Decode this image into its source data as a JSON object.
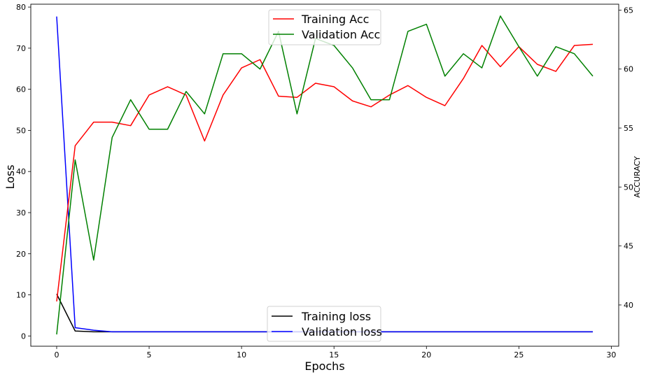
{
  "chart_data": {
    "type": "line",
    "xlabel": "Epochs",
    "ylabel_left": "Loss",
    "ylabel_right": "ACCURACY",
    "x": [
      0,
      1,
      2,
      3,
      4,
      5,
      6,
      7,
      8,
      9,
      10,
      11,
      12,
      13,
      14,
      15,
      16,
      17,
      18,
      19,
      20,
      21,
      22,
      23,
      24,
      25,
      26,
      27,
      28,
      29
    ],
    "xlim": [
      -1.4,
      30.4
    ],
    "ylim_left": [
      -2.5,
      80.7
    ],
    "ylim_right": [
      36.5,
      65.5
    ],
    "x_ticks": [
      0,
      5,
      10,
      15,
      20,
      25,
      30
    ],
    "y_ticks_left": [
      0,
      10,
      20,
      30,
      40,
      50,
      60,
      70,
      80
    ],
    "y_ticks_right": [
      40,
      45,
      50,
      55,
      60,
      65
    ],
    "legend_top": {
      "placement": "upper center",
      "entries": [
        "Training Acc",
        "Validation Acc"
      ]
    },
    "legend_bottom": {
      "placement": "lower center",
      "entries": [
        "Training loss",
        "Validation loss"
      ]
    },
    "series": [
      {
        "name": "Training Acc",
        "axis": "right",
        "color": "#ff0000",
        "values": [
          40.3,
          53.5,
          55.5,
          55.5,
          55.2,
          57.8,
          58.5,
          57.8,
          53.9,
          57.8,
          60.1,
          60.8,
          57.7,
          57.6,
          58.8,
          58.5,
          57.3,
          56.8,
          57.8,
          58.6,
          57.6,
          56.9,
          59.2,
          62.0,
          60.2,
          61.9,
          60.4,
          59.8,
          62.0,
          62.1
        ]
      },
      {
        "name": "Validation Acc",
        "axis": "right",
        "color": "#008000",
        "values": [
          37.5,
          52.3,
          43.8,
          54.2,
          57.4,
          54.9,
          54.9,
          58.1,
          56.2,
          61.3,
          61.3,
          60.0,
          63.2,
          56.2,
          62.6,
          62.0,
          60.1,
          57.4,
          57.4,
          63.2,
          63.8,
          59.4,
          61.3,
          60.1,
          64.5,
          61.9,
          59.4,
          61.9,
          61.3,
          59.4
        ]
      },
      {
        "name": "Training loss",
        "axis": "left",
        "color": "#000000",
        "values": [
          10.2,
          1.2,
          1.0,
          1.0,
          1.0,
          1.0,
          1.0,
          1.0,
          1.0,
          1.0,
          1.0,
          1.0,
          1.0,
          1.0,
          1.0,
          1.0,
          1.0,
          1.0,
          1.0,
          1.0,
          1.0,
          1.0,
          1.0,
          1.0,
          1.0,
          1.0,
          1.0,
          1.0,
          1.0,
          1.0
        ]
      },
      {
        "name": "Validation loss",
        "axis": "left",
        "color": "#0000ff",
        "values": [
          77.7,
          2.0,
          1.4,
          1.0,
          1.0,
          1.0,
          1.0,
          1.0,
          1.0,
          1.0,
          1.0,
          1.0,
          1.0,
          1.0,
          1.0,
          1.0,
          1.0,
          1.0,
          1.0,
          1.0,
          1.0,
          1.0,
          1.0,
          1.0,
          1.0,
          1.0,
          1.0,
          1.0,
          1.0,
          1.0
        ]
      }
    ]
  }
}
